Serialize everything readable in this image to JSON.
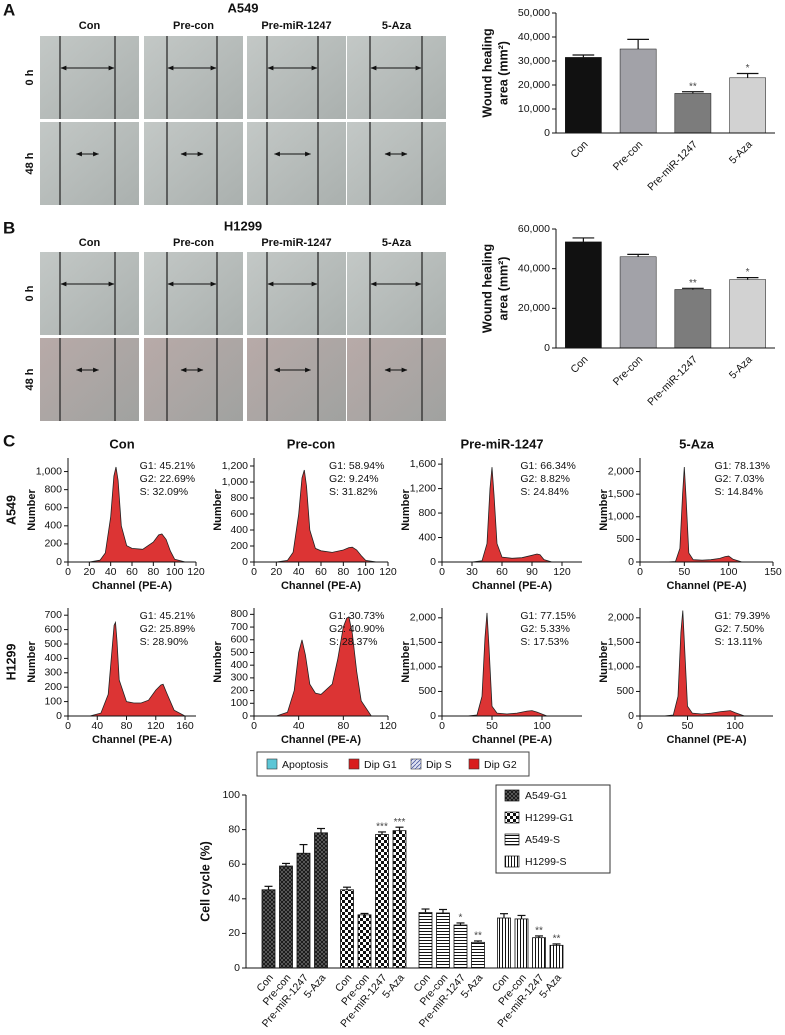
{
  "panels": {
    "a": {
      "label": "A",
      "title": "A549",
      "columns": [
        "Con",
        "Pre-con",
        "Pre-miR-1247",
        "5-Aza"
      ],
      "rows": [
        "0 h",
        "48 h"
      ]
    },
    "b": {
      "label": "B",
      "title": "H1299",
      "columns": [
        "Con",
        "Pre-con",
        "Pre-miR-1247",
        "5-Aza"
      ],
      "rows": [
        "0 h",
        "48 h"
      ]
    },
    "c": {
      "label": "C",
      "columns": [
        "Con",
        "Pre-con",
        "Pre-miR-1247",
        "5-Aza"
      ],
      "rows": [
        "A549",
        "H1299"
      ]
    }
  },
  "flow_legend": [
    {
      "name": "Apoptosis",
      "color": "#5cc6d6"
    },
    {
      "name": "Dip G1",
      "color": "#d81e1e"
    },
    {
      "name": "Dip S",
      "color": "#dfe2f2",
      "pattern": "hatch"
    },
    {
      "name": "Dip G2",
      "color": "#d81e1e"
    }
  ],
  "chart_data": [
    {
      "type": "bar",
      "categories": [
        "Con",
        "Pre-con",
        "Pre-miR-1247",
        "5-Aza"
      ],
      "values": [
        31500,
        35000,
        16500,
        23000
      ],
      "errors": [
        1000,
        4000,
        700,
        1800
      ],
      "colors": [
        "#111111",
        "#a2a2a8",
        "#7c7c7c",
        "#d2d2d2"
      ],
      "significance": [
        null,
        null,
        "**",
        "*"
      ],
      "ylabel": [
        "Wound healing",
        "area (mm²)"
      ],
      "ylim": [
        0,
        50000
      ],
      "yticks": [
        0,
        {
          "value": 10000,
          "label": "10,000"
        },
        {
          "value": 20000,
          "label": "20,000"
        },
        {
          "value": 30000,
          "label": "30,000"
        },
        {
          "value": 40000,
          "label": "40,000"
        },
        {
          "value": 50000,
          "label": "50,000"
        }
      ]
    },
    {
      "type": "bar",
      "categories": [
        "Con",
        "Pre-con",
        "Pre-miR-1247",
        "5-Aza"
      ],
      "values": [
        53500,
        46000,
        29500,
        34500
      ],
      "errors": [
        2000,
        1200,
        600,
        1000
      ],
      "colors": [
        "#111111",
        "#a2a2a8",
        "#7c7c7c",
        "#d2d2d2"
      ],
      "significance": [
        null,
        null,
        "**",
        "*"
      ],
      "ylabel": [
        "Wound healing",
        "area (mm²)"
      ],
      "ylim": [
        0,
        60000
      ],
      "yticks": [
        0,
        {
          "value": 20000,
          "label": "20,000"
        },
        {
          "value": 40000,
          "label": "40,000"
        },
        {
          "value": 60000,
          "label": "60,000"
        }
      ]
    },
    {
      "type": "area",
      "color": "#d81e1e",
      "xlabel": "Channel (PE-A)",
      "ylabel": "Number",
      "annotations": [
        "G1: 45.21%",
        "G2: 22.69%",
        "S: 32.09%"
      ],
      "x": [
        20,
        30,
        35,
        40,
        43,
        45,
        47,
        50,
        55,
        60,
        70,
        80,
        85,
        88,
        92,
        96,
        100,
        110
      ],
      "values": [
        0,
        20,
        100,
        500,
        950,
        1050,
        900,
        400,
        180,
        150,
        140,
        220,
        300,
        310,
        250,
        120,
        30,
        0
      ],
      "xlim": [
        0,
        120
      ],
      "xticks": [
        0,
        20,
        40,
        60,
        80,
        100,
        120
      ],
      "ylim": [
        0,
        1150
      ],
      "yticks": [
        0,
        200,
        400,
        600,
        800,
        {
          "value": 1000,
          "label": "1,000"
        }
      ]
    },
    {
      "type": "area",
      "color": "#d81e1e",
      "xlabel": "Channel (PE-A)",
      "ylabel": "Number",
      "annotations": [
        "G1: 58.94%",
        "G2: 9.24%",
        "S: 31.82%"
      ],
      "x": [
        20,
        30,
        35,
        40,
        43,
        45,
        47,
        50,
        55,
        60,
        70,
        80,
        85,
        88,
        92,
        96,
        100,
        110
      ],
      "values": [
        0,
        20,
        120,
        600,
        1050,
        1150,
        950,
        400,
        170,
        140,
        120,
        150,
        180,
        185,
        150,
        80,
        20,
        0
      ],
      "xlim": [
        0,
        120
      ],
      "xticks": [
        0,
        20,
        40,
        60,
        80,
        100,
        120
      ],
      "ylim": [
        0,
        1300
      ],
      "yticks": [
        0,
        200,
        400,
        600,
        800,
        {
          "value": 1000,
          "label": "1,000"
        },
        {
          "value": 1200,
          "label": "1,200"
        }
      ]
    },
    {
      "type": "area",
      "color": "#d81e1e",
      "xlabel": "Channel (PE-A)",
      "ylabel": "Number",
      "annotations": [
        "G1: 66.34%",
        "G2: 8.82%",
        "S: 24.84%"
      ],
      "x": [
        30,
        40,
        45,
        48,
        50,
        52,
        55,
        60,
        70,
        80,
        90,
        95,
        98,
        102,
        110
      ],
      "values": [
        0,
        20,
        300,
        1200,
        1550,
        1100,
        300,
        80,
        60,
        70,
        110,
        130,
        120,
        40,
        0
      ],
      "xlim": [
        0,
        140
      ],
      "xticks": [
        0,
        30,
        60,
        90,
        120
      ],
      "ylim": [
        0,
        1700
      ],
      "yticks": [
        0,
        400,
        800,
        {
          "value": 1200,
          "label": "1,200"
        },
        {
          "value": 1600,
          "label": "1,600"
        }
      ]
    },
    {
      "type": "area",
      "color": "#d81e1e",
      "xlabel": "Channel (PE-A)",
      "ylabel": "Number",
      "annotations": [
        "G1: 78.13%",
        "G2: 7.03%",
        "S: 14.84%"
      ],
      "x": [
        30,
        40,
        45,
        48,
        50,
        52,
        55,
        60,
        70,
        80,
        90,
        96,
        100,
        105,
        115
      ],
      "values": [
        0,
        10,
        300,
        1500,
        2100,
        1400,
        200,
        50,
        40,
        50,
        80,
        120,
        130,
        60,
        0
      ],
      "xlim": [
        0,
        150
      ],
      "xticks": [
        0,
        50,
        100,
        150
      ],
      "ylim": [
        0,
        2300
      ],
      "yticks": [
        0,
        500,
        {
          "value": 1000,
          "label": "1,000"
        },
        {
          "value": 1500,
          "label": "1,500"
        },
        {
          "value": 2000,
          "label": "2,000"
        }
      ]
    },
    {
      "type": "area",
      "color": "#d81e1e",
      "xlabel": "Channel (PE-A)",
      "ylabel": "Number",
      "annotations": [
        "G1: 45.21%",
        "G2: 25.89%",
        "S: 28.90%"
      ],
      "x": [
        30,
        45,
        55,
        60,
        63,
        65,
        67,
        70,
        80,
        90,
        100,
        110,
        120,
        127,
        130,
        135,
        145,
        160
      ],
      "values": [
        0,
        20,
        150,
        450,
        630,
        650,
        520,
        250,
        100,
        90,
        90,
        110,
        180,
        215,
        220,
        160,
        40,
        0
      ],
      "xlim": [
        0,
        175
      ],
      "xticks": [
        0,
        40,
        80,
        120,
        160
      ],
      "ylim": [
        0,
        750
      ],
      "yticks": [
        0,
        100,
        200,
        300,
        400,
        500,
        600,
        700
      ]
    },
    {
      "type": "area",
      "color": "#d81e1e",
      "xlabel": "Channel (PE-A)",
      "ylabel": "Number",
      "annotations": [
        "G1: 30.73%",
        "G2: 40.90%",
        "S: 28.37%"
      ],
      "x": [
        20,
        30,
        36,
        40,
        43,
        46,
        50,
        55,
        60,
        70,
        75,
        80,
        83,
        85,
        88,
        92,
        96,
        105
      ],
      "values": [
        0,
        30,
        200,
        500,
        600,
        480,
        250,
        180,
        170,
        250,
        450,
        700,
        770,
        780,
        650,
        350,
        120,
        0
      ],
      "xlim": [
        0,
        120
      ],
      "xticks": [
        0,
        40,
        80,
        120
      ],
      "ylim": [
        0,
        850
      ],
      "yticks": [
        0,
        100,
        200,
        300,
        400,
        500,
        600,
        700,
        800
      ]
    },
    {
      "type": "area",
      "color": "#d81e1e",
      "xlabel": "Channel (PE-A)",
      "ylabel": "Number",
      "annotations": [
        "G1: 77.15%",
        "G2: 5.33%",
        "S: 17.53%"
      ],
      "x": [
        25,
        35,
        40,
        43,
        45,
        47,
        50,
        55,
        65,
        75,
        85,
        90,
        95,
        105
      ],
      "values": [
        0,
        20,
        400,
        1600,
        2100,
        1400,
        200,
        60,
        40,
        60,
        100,
        110,
        80,
        0
      ],
      "xlim": [
        0,
        140
      ],
      "xticks": [
        0,
        50,
        100
      ],
      "ylim": [
        0,
        2200
      ],
      "yticks": [
        0,
        500,
        {
          "value": 1000,
          "label": "1,000"
        },
        {
          "value": 1500,
          "label": "1,500"
        },
        {
          "value": 2000,
          "label": "2,000"
        }
      ]
    },
    {
      "type": "area",
      "color": "#d81e1e",
      "xlabel": "Channel (PE-A)",
      "ylabel": "Number",
      "annotations": [
        "G1: 79.39%",
        "G2: 7.50%",
        "S: 13.11%"
      ],
      "x": [
        25,
        35,
        40,
        43,
        45,
        47,
        50,
        55,
        65,
        75,
        85,
        95,
        100,
        110
      ],
      "values": [
        0,
        20,
        400,
        1700,
        2150,
        1400,
        200,
        60,
        40,
        60,
        90,
        110,
        70,
        0
      ],
      "xlim": [
        0,
        140
      ],
      "xticks": [
        0,
        50,
        100
      ],
      "ylim": [
        0,
        2200
      ],
      "yticks": [
        0,
        500,
        {
          "value": 1000,
          "label": "1,000"
        },
        {
          "value": 1500,
          "label": "1,500"
        },
        {
          "value": 2000,
          "label": "2,000"
        }
      ]
    },
    {
      "type": "bar",
      "categories": [
        "Con",
        "Pre-con",
        "Pre-miR-1247",
        "5-Aza"
      ],
      "ylabel": "Cell cycle (%)",
      "ylim": [
        0,
        100
      ],
      "yticks": [
        0,
        20,
        40,
        60,
        80,
        100
      ],
      "series": [
        {
          "name": "A549-G1",
          "pattern": "crosshatch",
          "values": [
            45.21,
            58.94,
            66.34,
            78.13
          ],
          "errors": [
            2,
            1.5,
            5,
            2.5
          ],
          "significance": [
            null,
            null,
            null,
            null
          ]
        },
        {
          "name": "H1299-G1",
          "pattern": "checker",
          "values": [
            45.21,
            30.73,
            77.15,
            79.39
          ],
          "errors": [
            1.5,
            0.8,
            1.5,
            2
          ],
          "significance": [
            null,
            null,
            "***",
            "***"
          ]
        },
        {
          "name": "A549-S",
          "pattern": "hlines",
          "values": [
            32.09,
            31.82,
            24.84,
            14.84
          ],
          "errors": [
            2,
            2,
            1.2,
            0.8
          ],
          "significance": [
            null,
            null,
            "*",
            "**"
          ]
        },
        {
          "name": "H1299-S",
          "pattern": "vlines",
          "values": [
            28.9,
            28.37,
            17.53,
            13.11
          ],
          "errors": [
            2.5,
            2,
            1,
            0.8
          ],
          "significance": [
            null,
            null,
            "**",
            "**"
          ]
        }
      ]
    }
  ]
}
